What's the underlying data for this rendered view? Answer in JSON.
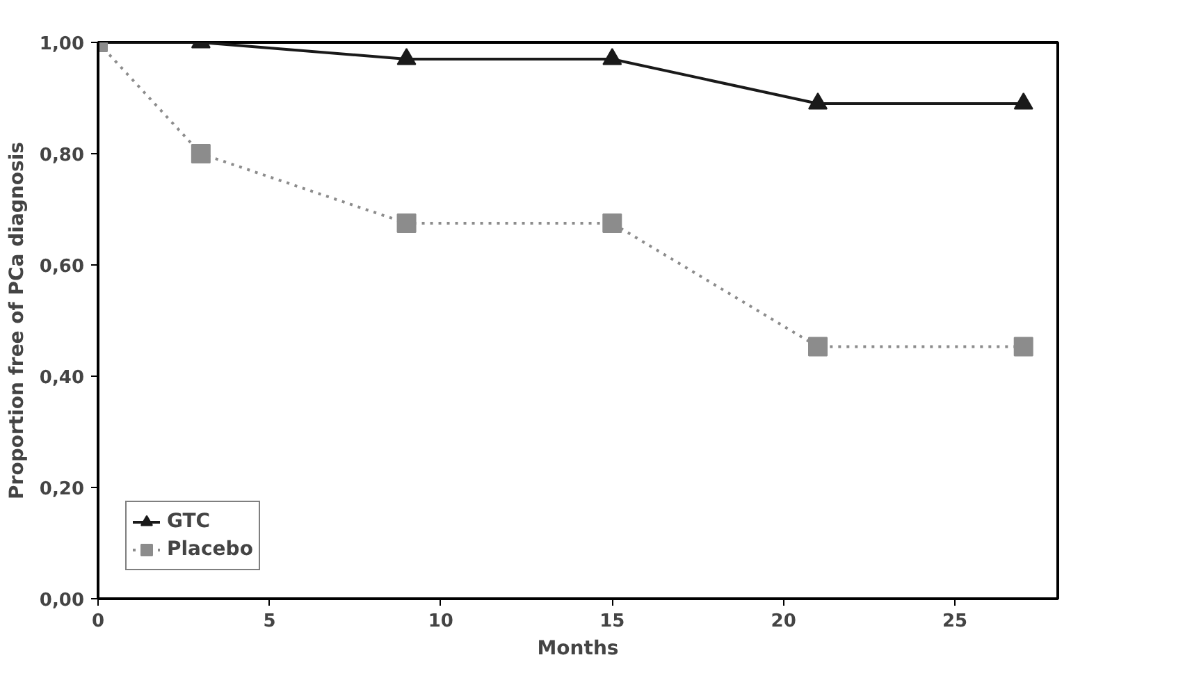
{
  "chart_data": {
    "type": "line",
    "xlabel": "Months",
    "ylabel": "Proportion free of PCa diagnosis",
    "xlim": [
      0,
      28
    ],
    "ylim": [
      0,
      1
    ],
    "xticks": [
      0,
      5,
      10,
      15,
      20,
      25
    ],
    "yticks": [
      {
        "value": 0,
        "label": "0,00"
      },
      {
        "value": 0.2,
        "label": "0,20"
      },
      {
        "value": 0.4,
        "label": "0,40"
      },
      {
        "value": 0.6,
        "label": "0,60"
      },
      {
        "value": 0.8,
        "label": "0,80"
      },
      {
        "value": 1,
        "label": "1,00"
      }
    ],
    "x": [
      0,
      3,
      9,
      15,
      21,
      27
    ],
    "series": [
      {
        "name": "GTC",
        "color": "#1a1a1a",
        "values": [
          1.0,
          1.0,
          0.97,
          0.97,
          0.89,
          0.89
        ],
        "marker": "triangle",
        "line_style": "solid"
      },
      {
        "name": "Placebo",
        "color": "#8c8c8c",
        "values": [
          1.0,
          0.8,
          0.675,
          0.675,
          0.453,
          0.453
        ],
        "marker": "square",
        "line_style": "dotted"
      }
    ],
    "grid": false,
    "legend": "bottom left"
  }
}
